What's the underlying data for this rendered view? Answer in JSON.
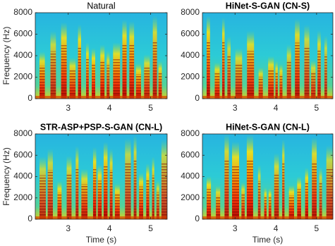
{
  "chart_data": [
    {
      "type": "spectrogram",
      "title": "Natural",
      "bold_title": false,
      "ylabel": "Frequency (Hz)",
      "xlim": [
        2.2,
        5.4
      ],
      "ylim": [
        0,
        8000
      ],
      "xticks": [
        3,
        4,
        5
      ],
      "yticks": [
        0,
        2000,
        4000,
        6000,
        8000
      ]
    },
    {
      "type": "spectrogram",
      "title": "HiNet-S-GAN (CN-S)",
      "bold_title": true,
      "xlim": [
        2.2,
        5.4
      ],
      "ylim": [
        0,
        8000
      ],
      "xticks": [
        3,
        4,
        5
      ],
      "yticks": [
        0,
        2000,
        4000,
        6000,
        8000
      ]
    },
    {
      "type": "spectrogram",
      "title": "STR-ASP+PSP-S-GAN (CN-L)",
      "bold_title": true,
      "xlabel": "Time (s)",
      "ylabel": "Frequency (Hz)",
      "xlim": [
        2.2,
        5.4
      ],
      "ylim": [
        0,
        8000
      ],
      "xticks": [
        3,
        4,
        5
      ],
      "yticks": [
        0,
        2000,
        4000,
        6000,
        8000
      ]
    },
    {
      "type": "spectrogram",
      "title": "HiNet-S-GAN (CN-L)",
      "bold_title": true,
      "xlabel": "Time (s)",
      "xlim": [
        2.2,
        5.4
      ],
      "ylim": [
        0,
        8000
      ],
      "xticks": [
        3,
        4,
        5
      ],
      "yticks": [
        0,
        2000,
        4000,
        6000,
        8000
      ]
    }
  ]
}
